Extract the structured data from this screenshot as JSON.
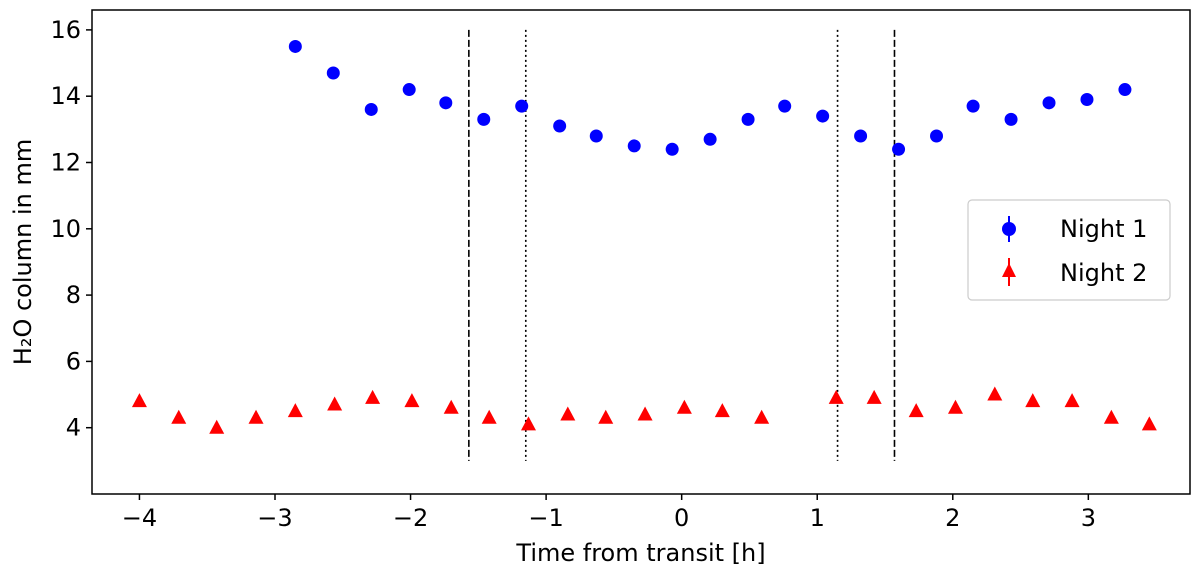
{
  "chart_data": {
    "type": "scatter",
    "xlabel": "Time from transit [h]",
    "ylabel": "H₂O column in mm",
    "xlim": [
      -4.35,
      3.75
    ],
    "ylim": [
      2.0,
      16.6
    ],
    "x_ticks": [
      -4,
      -3,
      -2,
      -1,
      0,
      1,
      2,
      3
    ],
    "x_tick_labels": [
      "−4",
      "−3",
      "−2",
      "−1",
      "0",
      "1",
      "2",
      "3"
    ],
    "y_ticks": [
      4,
      6,
      8,
      10,
      12,
      14,
      16
    ],
    "y_tick_labels": [
      "4",
      "6",
      "8",
      "10",
      "12",
      "14",
      "16"
    ],
    "grid": false,
    "legend_position": "right",
    "vlines": [
      {
        "x": -1.57,
        "style": "dashed",
        "ymin": 3.0,
        "ymax": 16.0
      },
      {
        "x": -1.15,
        "style": "dotted",
        "ymin": 3.0,
        "ymax": 16.0
      },
      {
        "x": 1.15,
        "style": "dotted",
        "ymin": 3.0,
        "ymax": 16.0
      },
      {
        "x": 1.57,
        "style": "dashed",
        "ymin": 3.0,
        "ymax": 16.0
      }
    ],
    "series": [
      {
        "name": "Night 1",
        "marker": "circle",
        "color": "#0000ff",
        "x": [
          -2.85,
          -2.57,
          -2.29,
          -2.01,
          -1.74,
          -1.46,
          -1.18,
          -0.9,
          -0.63,
          -0.35,
          -0.07,
          0.21,
          0.49,
          0.76,
          1.04,
          1.32,
          1.6,
          1.88,
          2.15,
          2.43,
          2.71,
          2.99,
          3.27
        ],
        "y": [
          15.5,
          14.7,
          13.6,
          14.2,
          13.8,
          13.3,
          13.7,
          13.1,
          12.8,
          12.5,
          12.4,
          12.7,
          13.3,
          13.7,
          13.4,
          12.8,
          12.4,
          12.8,
          13.7,
          13.3,
          13.8,
          13.9,
          14.2
        ]
      },
      {
        "name": "Night 2",
        "marker": "triangle",
        "color": "#ff0000",
        "x": [
          -4.0,
          -3.71,
          -3.43,
          -3.14,
          -2.85,
          -2.56,
          -2.28,
          -1.99,
          -1.7,
          -1.42,
          -1.13,
          -0.84,
          -0.56,
          -0.27,
          0.02,
          0.3,
          0.59,
          1.14,
          1.42,
          1.73,
          2.02,
          2.31,
          2.59,
          2.88,
          3.17,
          3.45
        ],
        "y": [
          4.8,
          4.3,
          4.0,
          4.3,
          4.5,
          4.7,
          4.9,
          4.8,
          4.6,
          4.3,
          4.1,
          4.4,
          4.3,
          4.4,
          4.6,
          4.5,
          4.3,
          4.9,
          4.9,
          4.5,
          4.6,
          5.0,
          4.8,
          4.8,
          4.3,
          4.1
        ]
      }
    ]
  }
}
